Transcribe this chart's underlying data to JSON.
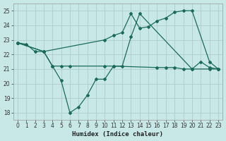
{
  "xlabel": "Humidex (Indice chaleur)",
  "bg_color": "#c8e8e8",
  "line_color": "#1a6b5a",
  "grid_color": "#b0cccc",
  "xlim": [
    -0.5,
    23.5
  ],
  "ylim": [
    17.5,
    25.5
  ],
  "yticks": [
    18,
    19,
    20,
    21,
    22,
    23,
    24,
    25
  ],
  "xticks": [
    0,
    1,
    2,
    3,
    4,
    5,
    6,
    7,
    8,
    9,
    10,
    11,
    12,
    13,
    14,
    15,
    16,
    17,
    18,
    19,
    20,
    21,
    22,
    23
  ],
  "line1_x": [
    0,
    1,
    2,
    3,
    4,
    5,
    6,
    7,
    8,
    9,
    10,
    11,
    12,
    13,
    14,
    20,
    21,
    22,
    23
  ],
  "line1_y": [
    22.8,
    22.7,
    22.2,
    22.2,
    21.2,
    20.2,
    18.0,
    18.4,
    19.2,
    20.3,
    20.3,
    21.2,
    21.2,
    23.2,
    24.8,
    21.0,
    21.5,
    21.1,
    21.0
  ],
  "line2_x": [
    0,
    3,
    10,
    11,
    12,
    13,
    14,
    15,
    16,
    17,
    18,
    19,
    20,
    22,
    23
  ],
  "line2_y": [
    22.8,
    22.2,
    23.0,
    23.3,
    23.5,
    24.8,
    23.8,
    23.9,
    24.3,
    24.5,
    24.9,
    25.0,
    25.0,
    21.5,
    21.0
  ],
  "line3_x": [
    0,
    3,
    4,
    5,
    6,
    10,
    11,
    16,
    17,
    18,
    19,
    20,
    22,
    23
  ],
  "line3_y": [
    22.8,
    22.2,
    21.2,
    21.2,
    21.2,
    21.2,
    21.2,
    21.1,
    21.1,
    21.1,
    21.0,
    21.0,
    21.0,
    21.0
  ],
  "markersize": 2.0,
  "linewidth": 0.9
}
